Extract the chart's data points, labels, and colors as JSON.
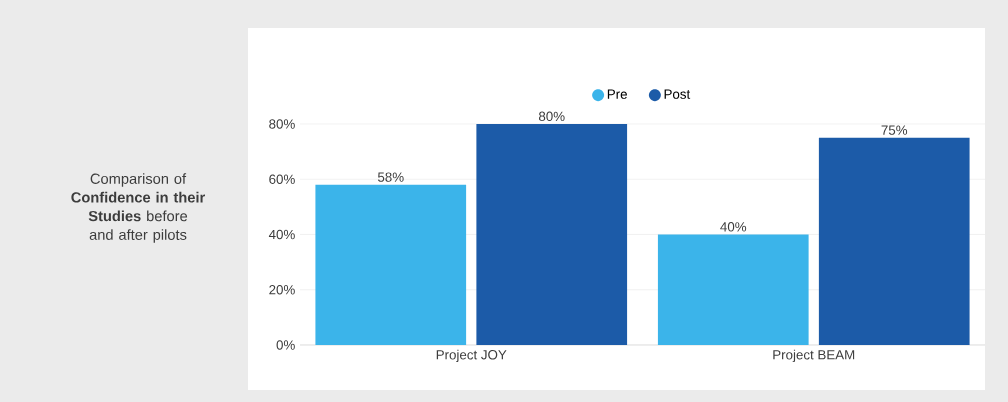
{
  "chart_data": {
    "type": "bar",
    "title": "Comparison of **Confidence in their Studies** before and after pilots",
    "categories": [
      "Project JOY",
      "Project BEAM"
    ],
    "series": [
      {
        "name": "Pre",
        "color": "#3bb4ea",
        "values": [
          58,
          40
        ],
        "value_labels": [
          "58%",
          "40%"
        ]
      },
      {
        "name": "Post",
        "color": "#1c5ba8",
        "values": [
          80,
          75
        ],
        "value_labels": [
          "80%",
          "75%"
        ]
      }
    ],
    "ylim": [
      0,
      80
    ],
    "yticks": [
      {
        "value": 0,
        "label": "0%"
      },
      {
        "value": 20,
        "label": "20%"
      },
      {
        "value": 40,
        "label": "40%"
      },
      {
        "value": 60,
        "label": "60%"
      },
      {
        "value": 80,
        "label": "80%"
      }
    ],
    "grid": "y",
    "legend": "top"
  }
}
